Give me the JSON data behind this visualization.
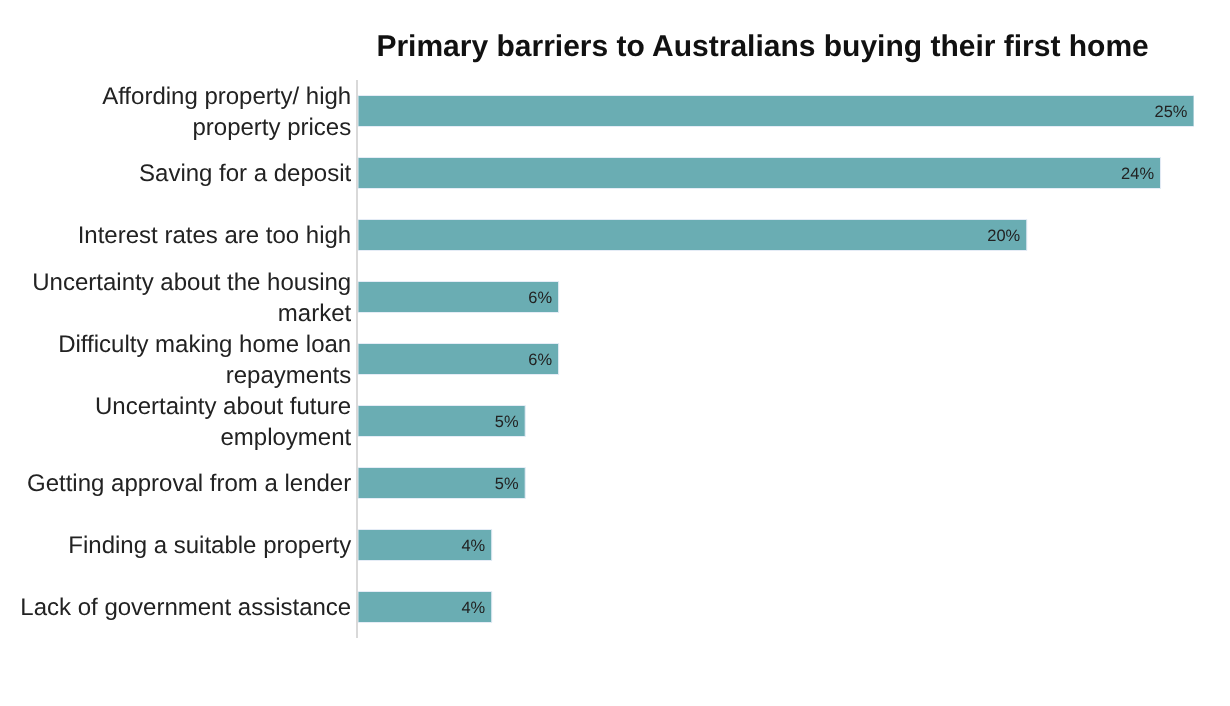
{
  "chart_data": {
    "type": "bar",
    "orientation": "horizontal",
    "title": "Primary barriers to Australians buying their first home",
    "categories": [
      "Affording property/ high property prices",
      "Saving for a deposit",
      "Interest rates are too high",
      "Uncertainty about the housing market",
      "Difficulty making home loan repayments",
      "Uncertainty about future employment",
      "Getting approval from a lender",
      "Finding a suitable property",
      "Lack of government assistance"
    ],
    "values": [
      25,
      24,
      20,
      6,
      6,
      5,
      5,
      4,
      4
    ],
    "value_labels": [
      "25%",
      "24%",
      "20%",
      "6%",
      "6%",
      "5%",
      "5%",
      "4%",
      "4%"
    ],
    "color": "#6aadb3"
  }
}
